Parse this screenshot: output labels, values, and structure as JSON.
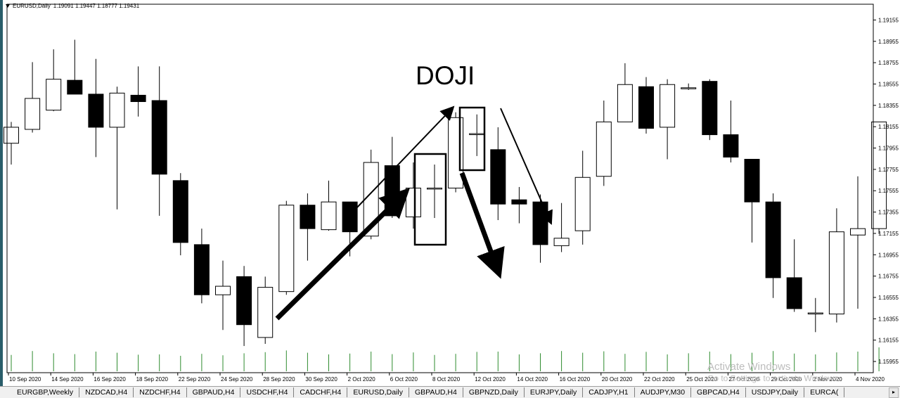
{
  "header": {
    "symbol": "EURUSD,Daily",
    "ohlc": "1.19091 1.19447 1.18777 1.19431"
  },
  "annotation": {
    "label": "DOJI"
  },
  "colors": {
    "bull_fill": "#ffffff",
    "bear_fill": "#000000",
    "wick": "#000000",
    "volume": "#2e8b2e",
    "grid": "#c8c8c8"
  },
  "chart_data": {
    "type": "candlestick",
    "title": "EURUSD,Daily",
    "y_axis": {
      "ylim": [
        1.1585,
        1.1925
      ],
      "ticks": [
        "1.19155",
        "1.18955",
        "1.18755",
        "1.18555",
        "1.18355",
        "1.18155",
        "1.17955",
        "1.17755",
        "1.17555",
        "1.17355",
        "1.17155",
        "1.16955",
        "1.16755",
        "1.16555",
        "1.16355",
        "1.16155",
        "1.15955"
      ]
    },
    "x_axis": {
      "ticks": [
        "10 Sep 2020",
        "14 Sep 2020",
        "16 Sep 2020",
        "18 Sep 2020",
        "22 Sep 2020",
        "24 Sep 2020",
        "28 Sep 2020",
        "30 Sep 2020",
        "2 Oct 2020",
        "6 Oct 2020",
        "8 Oct 2020",
        "12 Oct 2020",
        "14 Oct 2020",
        "16 Oct 2020",
        "20 Oct 2020",
        "22 Oct 2020",
        "25 Oct 2020",
        "27 Oct 2020",
        "29 Oct 2020",
        "2 Nov 2020",
        "4 Nov 2020"
      ]
    },
    "candles": [
      {
        "o": 1.18,
        "h": 1.182,
        "l": 1.178,
        "c": 1.1815
      },
      {
        "o": 1.1813,
        "h": 1.1876,
        "l": 1.181,
        "c": 1.1842
      },
      {
        "o": 1.1831,
        "h": 1.1888,
        "l": 1.183,
        "c": 1.186
      },
      {
        "o": 1.1859,
        "h": 1.1897,
        "l": 1.1846,
        "c": 1.1846
      },
      {
        "o": 1.1846,
        "h": 1.1879,
        "l": 1.1787,
        "c": 1.1815
      },
      {
        "o": 1.1815,
        "h": 1.1853,
        "l": 1.1738,
        "c": 1.1847
      },
      {
        "o": 1.1845,
        "h": 1.1872,
        "l": 1.1825,
        "c": 1.1839
      },
      {
        "o": 1.184,
        "h": 1.1872,
        "l": 1.1732,
        "c": 1.1771
      },
      {
        "o": 1.1765,
        "h": 1.1772,
        "l": 1.1695,
        "c": 1.1707
      },
      {
        "o": 1.1705,
        "h": 1.172,
        "l": 1.165,
        "c": 1.1658
      },
      {
        "o": 1.1658,
        "h": 1.169,
        "l": 1.1625,
        "c": 1.1666
      },
      {
        "o": 1.1675,
        "h": 1.1685,
        "l": 1.161,
        "c": 1.163
      },
      {
        "o": 1.1618,
        "h": 1.1675,
        "l": 1.1612,
        "c": 1.1665
      },
      {
        "o": 1.1661,
        "h": 1.1746,
        "l": 1.1658,
        "c": 1.1742
      },
      {
        "o": 1.1742,
        "h": 1.1753,
        "l": 1.169,
        "c": 1.172
      },
      {
        "o": 1.1719,
        "h": 1.1765,
        "l": 1.1718,
        "c": 1.1745
      },
      {
        "o": 1.1745,
        "h": 1.1745,
        "l": 1.1694,
        "c": 1.1717
      },
      {
        "o": 1.1713,
        "h": 1.1794,
        "l": 1.171,
        "c": 1.1782
      },
      {
        "o": 1.1779,
        "h": 1.1806,
        "l": 1.173,
        "c": 1.1732
      },
      {
        "o": 1.1731,
        "h": 1.1782,
        "l": 1.172,
        "c": 1.1758
      },
      {
        "o": 1.1758,
        "h": 1.178,
        "l": 1.173,
        "c": 1.1758
      },
      {
        "o": 1.1758,
        "h": 1.1829,
        "l": 1.1754,
        "c": 1.1824
      },
      {
        "o": 1.1809,
        "h": 1.1827,
        "l": 1.1788,
        "c": 1.1809
      },
      {
        "o": 1.1794,
        "h": 1.1815,
        "l": 1.1728,
        "c": 1.1743
      },
      {
        "o": 1.1747,
        "h": 1.1759,
        "l": 1.1725,
        "c": 1.1743
      },
      {
        "o": 1.1745,
        "h": 1.1752,
        "l": 1.1688,
        "c": 1.1705
      },
      {
        "o": 1.1704,
        "h": 1.1744,
        "l": 1.1698,
        "c": 1.1711
      },
      {
        "o": 1.1718,
        "h": 1.1793,
        "l": 1.1705,
        "c": 1.1768
      },
      {
        "o": 1.1769,
        "h": 1.184,
        "l": 1.176,
        "c": 1.182
      },
      {
        "o": 1.182,
        "h": 1.1875,
        "l": 1.182,
        "c": 1.1855
      },
      {
        "o": 1.1853,
        "h": 1.1862,
        "l": 1.1809,
        "c": 1.1814
      },
      {
        "o": 1.1815,
        "h": 1.186,
        "l": 1.1785,
        "c": 1.1855
      },
      {
        "o": 1.1852,
        "h": 1.1856,
        "l": 1.185,
        "c": 1.1852
      },
      {
        "o": 1.1858,
        "h": 1.186,
        "l": 1.1803,
        "c": 1.1808
      },
      {
        "o": 1.1808,
        "h": 1.184,
        "l": 1.1782,
        "c": 1.1787
      },
      {
        "o": 1.1785,
        "h": 1.1785,
        "l": 1.1707,
        "c": 1.1745
      },
      {
        "o": 1.1745,
        "h": 1.1753,
        "l": 1.1655,
        "c": 1.1674
      },
      {
        "o": 1.1674,
        "h": 1.171,
        "l": 1.1642,
        "c": 1.1645
      },
      {
        "o": 1.1641,
        "h": 1.1655,
        "l": 1.1623,
        "c": 1.1641
      },
      {
        "o": 1.164,
        "h": 1.1739,
        "l": 1.1632,
        "c": 1.1717
      },
      {
        "o": 1.1714,
        "h": 1.1769,
        "l": 1.1645,
        "c": 1.172
      },
      {
        "o": 1.172,
        "h": 1.182,
        "l": 1.1715,
        "c": 1.182
      }
    ],
    "volumes": [
      0.58,
      0.72,
      0.64,
      0.61,
      0.7,
      0.66,
      0.59,
      0.6,
      0.55,
      0.62,
      0.57,
      0.64,
      0.68,
      0.74,
      0.66,
      0.6,
      0.63,
      0.7,
      0.61,
      0.67,
      0.58,
      0.62,
      0.69,
      0.7,
      0.6,
      0.64,
      0.72,
      0.66,
      0.71,
      0.62,
      0.69,
      0.6,
      0.64,
      0.7,
      0.61,
      0.66,
      0.72,
      0.63,
      0.6,
      0.67,
      0.7,
      0.85
    ]
  },
  "tabs": [
    "EURGBP,Weekly",
    "NZDCAD,H4",
    "NZDCHF,H4",
    "GBPAUD,H4",
    "USDCHF,H4",
    "CADCHF,H4",
    "EURUSD,Daily",
    "GBPAUD,H4",
    "GBPNZD,Daily",
    "EURJPY,Daily",
    "CADJPY,H1",
    "AUDJPY,M30",
    "GBPCAD,H4",
    "USDJPY,Daily",
    "EURCA("
  ],
  "watermark": {
    "title": "Activate Windows",
    "subtitle": "Go to Settings to activate Windows."
  }
}
